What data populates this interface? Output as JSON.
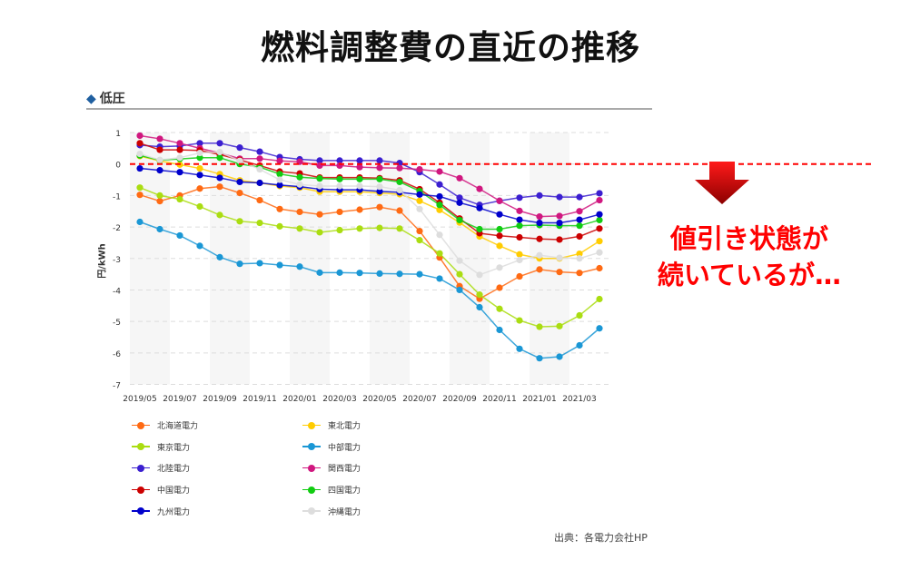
{
  "title": "燃料調整費の直近の推移",
  "section": {
    "marker": "◆",
    "label": "低圧"
  },
  "callout": {
    "line1": "値引き状態が",
    "line2": "続いているが…",
    "color": "#ff0000"
  },
  "source": "出典：各電力会社HP",
  "chart_data": {
    "type": "line",
    "title": "",
    "xlabel": "",
    "ylabel": "円/kWh",
    "ylim": [
      -7,
      1
    ],
    "yticks": [
      1,
      0,
      -1,
      -2,
      -3,
      -4,
      -5,
      -6,
      -7
    ],
    "grid": true,
    "legend_position": "bottom",
    "reference_line": {
      "value": 0,
      "color": "#ff0000",
      "style": "dashed"
    },
    "x": [
      "2019/05",
      "2019/06",
      "2019/07",
      "2019/08",
      "2019/09",
      "2019/10",
      "2019/11",
      "2019/12",
      "2020/01",
      "2020/02",
      "2020/03",
      "2020/04",
      "2020/05",
      "2020/06",
      "2020/07",
      "2020/08",
      "2020/09",
      "2020/10",
      "2020/11",
      "2020/12",
      "2021/01",
      "2021/02",
      "2021/03",
      "2021/04"
    ],
    "xticks": [
      "2019/05",
      "2019/07",
      "2019/09",
      "2019/11",
      "2020/01",
      "2020/03",
      "2020/05",
      "2020/07",
      "2020/09",
      "2020/11",
      "2021/01",
      "2021/03"
    ],
    "series": [
      {
        "name": "北海道電力",
        "color": "#ff6a13",
        "values": [
          -0.98,
          -1.18,
          -1.0,
          -0.78,
          -0.72,
          -0.92,
          -1.15,
          -1.43,
          -1.52,
          -1.6,
          -1.52,
          -1.45,
          -1.37,
          -1.48,
          -2.13,
          -2.97,
          -3.88,
          -4.28,
          -3.93,
          -3.57,
          -3.35,
          -3.43,
          -3.46,
          -3.31
        ]
      },
      {
        "name": "東北電力",
        "color": "#ffcc00",
        "values": [
          0.25,
          0.1,
          -0.02,
          -0.14,
          -0.32,
          -0.52,
          -0.6,
          -0.7,
          -0.75,
          -0.88,
          -0.88,
          -0.88,
          -0.92,
          -0.96,
          -1.17,
          -1.46,
          -1.86,
          -2.3,
          -2.6,
          -2.87,
          -3.0,
          -3.0,
          -2.85,
          -2.45
        ]
      },
      {
        "name": "東京電力",
        "color": "#aadd11",
        "values": [
          -0.75,
          -1.0,
          -1.12,
          -1.35,
          -1.62,
          -1.82,
          -1.87,
          -1.98,
          -2.05,
          -2.17,
          -2.1,
          -2.05,
          -2.03,
          -2.05,
          -2.42,
          -2.84,
          -3.5,
          -4.15,
          -4.6,
          -4.97,
          -5.17,
          -5.15,
          -4.81,
          -4.29
        ]
      },
      {
        "name": "中部電力",
        "color": "#1a97d5",
        "values": [
          -1.84,
          -2.07,
          -2.27,
          -2.6,
          -2.96,
          -3.17,
          -3.15,
          -3.21,
          -3.26,
          -3.45,
          -3.45,
          -3.46,
          -3.48,
          -3.49,
          -3.5,
          -3.64,
          -4.0,
          -4.55,
          -5.27,
          -5.87,
          -6.17,
          -6.12,
          -5.76,
          -5.22
        ]
      },
      {
        "name": "北陸電力",
        "color": "#3b1fd0",
        "values": [
          0.6,
          0.55,
          0.57,
          0.66,
          0.66,
          0.52,
          0.39,
          0.22,
          0.15,
          0.11,
          0.11,
          0.11,
          0.11,
          0.03,
          -0.26,
          -0.65,
          -1.07,
          -1.3,
          -1.17,
          -1.07,
          -1.0,
          -1.05,
          -1.05,
          -0.93
        ]
      },
      {
        "name": "関西電力",
        "color": "#d0177f",
        "values": [
          0.9,
          0.8,
          0.66,
          0.5,
          0.35,
          0.17,
          0.17,
          0.1,
          0.07,
          -0.05,
          -0.05,
          -0.1,
          -0.12,
          -0.13,
          -0.17,
          -0.24,
          -0.45,
          -0.79,
          -1.17,
          -1.49,
          -1.67,
          -1.65,
          -1.5,
          -1.15
        ]
      },
      {
        "name": "中国電力",
        "color": "#cc0000",
        "values": [
          0.66,
          0.45,
          0.45,
          0.43,
          0.3,
          0.13,
          -0.05,
          -0.24,
          -0.3,
          -0.43,
          -0.43,
          -0.43,
          -0.45,
          -0.52,
          -0.8,
          -1.23,
          -1.73,
          -2.2,
          -2.28,
          -2.33,
          -2.38,
          -2.4,
          -2.3,
          -2.05
        ]
      },
      {
        "name": "四国電力",
        "color": "#11cc11",
        "values": [
          0.27,
          0.12,
          0.16,
          0.2,
          0.2,
          0.0,
          -0.1,
          -0.32,
          -0.42,
          -0.46,
          -0.48,
          -0.48,
          -0.48,
          -0.57,
          -0.86,
          -1.3,
          -1.78,
          -2.07,
          -2.07,
          -1.96,
          -1.94,
          -1.96,
          -1.96,
          -1.78
        ]
      },
      {
        "name": "九州電力",
        "color": "#0000cc",
        "values": [
          -0.14,
          -0.2,
          -0.26,
          -0.35,
          -0.44,
          -0.57,
          -0.6,
          -0.67,
          -0.72,
          -0.8,
          -0.82,
          -0.82,
          -0.87,
          -0.9,
          -0.97,
          -1.03,
          -1.23,
          -1.4,
          -1.6,
          -1.77,
          -1.87,
          -1.87,
          -1.77,
          -1.6
        ]
      },
      {
        "name": "沖縄電力",
        "color": "#dddddd",
        "values": [
          0.32,
          0.13,
          0.2,
          0.35,
          0.38,
          0.1,
          -0.17,
          -0.5,
          -0.65,
          -0.7,
          -0.7,
          -0.7,
          -0.72,
          -0.83,
          -1.43,
          -2.25,
          -3.07,
          -3.52,
          -3.29,
          -3.05,
          -2.9,
          -2.98,
          -3.0,
          -2.81
        ]
      }
    ]
  }
}
